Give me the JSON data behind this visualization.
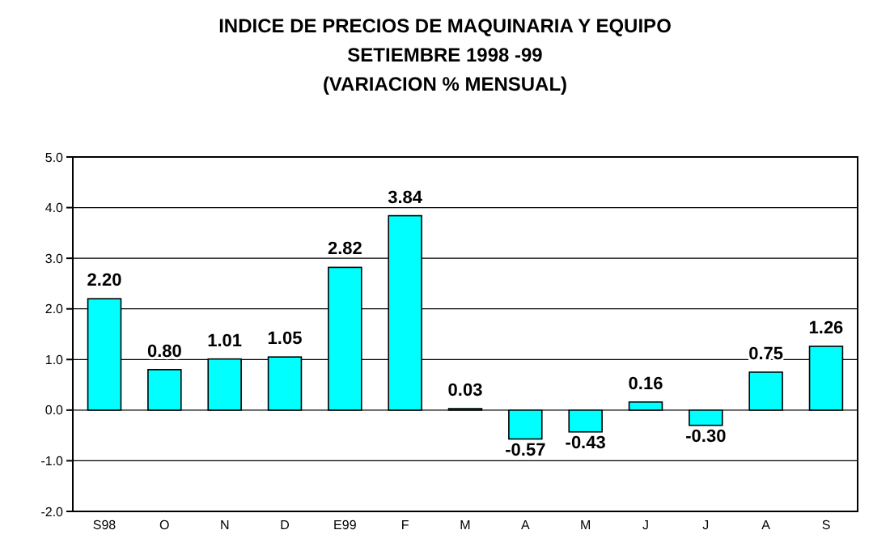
{
  "chart_data": {
    "type": "bar",
    "title": "INDICE DE PRECIOS DE MAQUINARIA Y EQUIPO",
    "subtitle": "SETIEMBRE 1998 -99",
    "annotations": [
      "(VARIACION % MENSUAL)"
    ],
    "categories": [
      "S98",
      "O",
      "N",
      "D",
      "E99",
      "F",
      "M",
      "A",
      "M",
      "J",
      "J",
      "A",
      "S"
    ],
    "values": [
      2.2,
      0.8,
      1.01,
      1.05,
      2.82,
      3.84,
      0.03,
      -0.57,
      -0.43,
      0.16,
      -0.3,
      0.75,
      1.26
    ],
    "value_labels": [
      "2.20",
      "0.80",
      "1.01",
      "1.05",
      "2.82",
      "3.84",
      "0.03",
      "-0.57",
      "-0.43",
      "0.16",
      "-0.30",
      "0.75",
      "1.26"
    ],
    "color": "#00ffff",
    "ylim": [
      -2,
      5
    ],
    "yticks": [
      {
        "value": -2,
        "label": "-2.0"
      },
      {
        "value": -1,
        "label": "-1.0"
      },
      {
        "value": 0,
        "label": "0.0"
      },
      {
        "value": 1,
        "label": "1.0"
      },
      {
        "value": 2,
        "label": "2.0"
      },
      {
        "value": 3,
        "label": "3.0"
      },
      {
        "value": 4,
        "label": "4.0"
      },
      {
        "value": 5,
        "label": "5.0"
      }
    ],
    "grid": "y"
  }
}
